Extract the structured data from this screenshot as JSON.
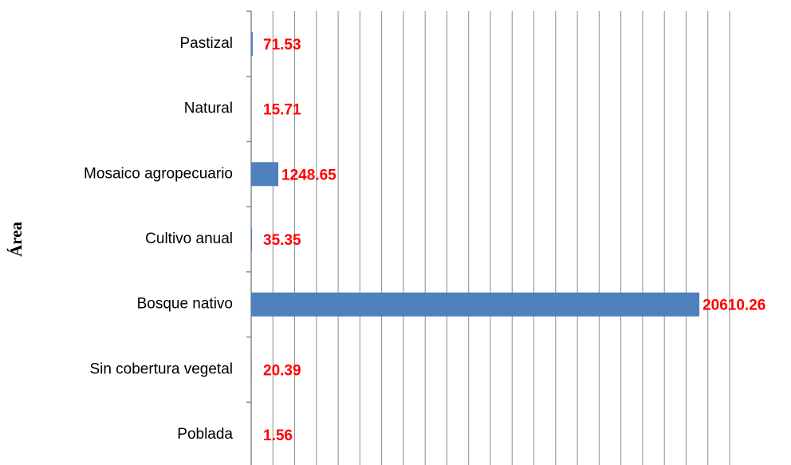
{
  "chart_data": {
    "type": "barh",
    "ylabel": "Área",
    "categories": [
      "Pastizal",
      "Natural",
      "Mosaico agropecuario",
      "Cultivo anual",
      "Bosque nativo",
      "Sin cobertura vegetal",
      "Poblada"
    ],
    "values": [
      71.53,
      15.71,
      1248.65,
      35.35,
      20610.26,
      20.39,
      1.56
    ],
    "color": "#4f81bd",
    "label_color": "#ff0000",
    "xlim": [
      0,
      22000
    ],
    "xticks": [
      0,
      1000,
      2000,
      3000,
      4000,
      5000,
      6000,
      7000,
      8000,
      9000,
      10000,
      11000,
      12000,
      13000,
      14000,
      15000,
      16000,
      17000,
      18000,
      19000,
      20000,
      21000,
      22000
    ],
    "grid": true
  }
}
